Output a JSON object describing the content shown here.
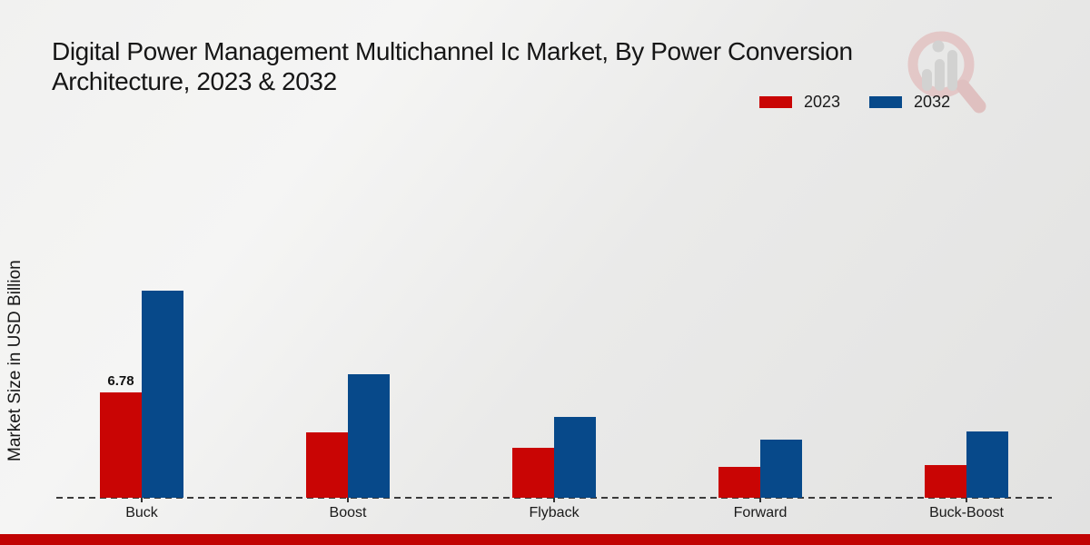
{
  "header": {
    "title_line1": "Digital Power Management Multichannel Ic Market, By Power Conversion",
    "title_line2": "Architecture, 2023 & 2032"
  },
  "legend": {
    "items": [
      {
        "label": "2023",
        "color": "#c90504"
      },
      {
        "label": "2032",
        "color": "#07498a"
      }
    ]
  },
  "axes": {
    "y_label": "Market Size in USD Billion"
  },
  "footer": {
    "band_color": "#c10303"
  },
  "watermark": {
    "icon": "magnifier-bar-chart-logo",
    "ring_color": "#dfa8a8",
    "bar_color": "#bdbdbd"
  },
  "chart_data": {
    "type": "bar",
    "title": "Digital Power Management Multichannel Ic Market, By Power Conversion Architecture, 2023 & 2032",
    "categories": [
      "Buck",
      "Boost",
      "Flyback",
      "Forward",
      "Buck-Boost"
    ],
    "series": [
      {
        "name": "2023",
        "color": "#c90504",
        "values": [
          6.78,
          4.2,
          3.2,
          2.0,
          2.1
        ]
      },
      {
        "name": "2032",
        "color": "#07498a",
        "values": [
          13.35,
          8.0,
          5.2,
          3.75,
          4.3
        ]
      }
    ],
    "xlabel": "",
    "ylabel": "Market Size in USD Billion",
    "ylim": [
      0,
      15
    ],
    "grid": false,
    "legend_position": "top-right",
    "baseline_style": "dashed",
    "data_labels": [
      {
        "category": "Buck",
        "series": "2023",
        "text": "6.78"
      }
    ]
  }
}
